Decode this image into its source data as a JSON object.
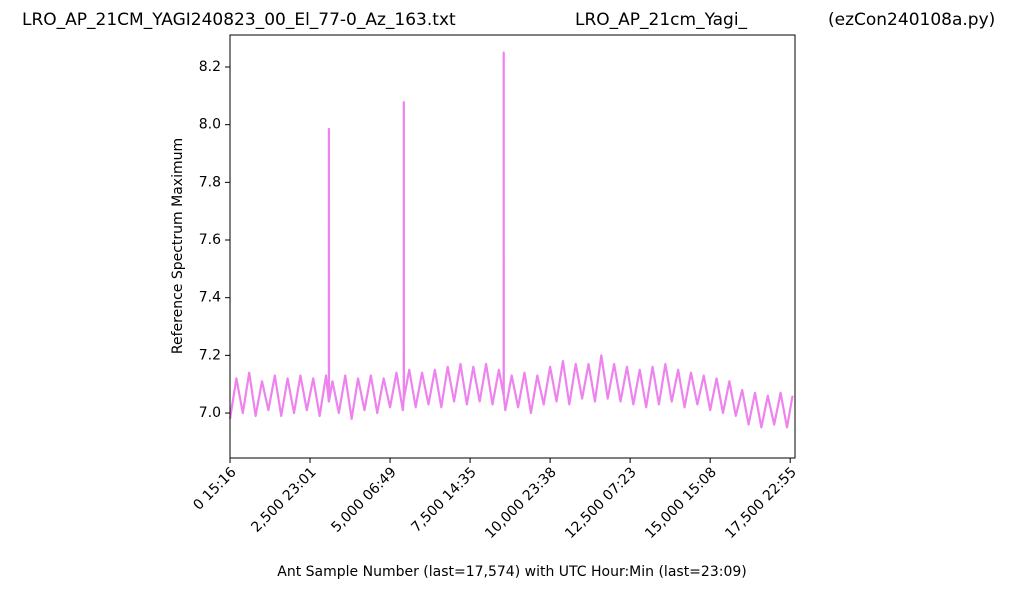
{
  "chart_data": {
    "type": "line",
    "title_left": "LRO_AP_21CM_YAGI240823_00_El_77-0_Az_163.txt",
    "title": "LRO_AP_21cm_Yagi_",
    "title_right": "(ezCon240108a.py)",
    "x_label": "Ant Sample Number (last=17,574) with UTC Hour:Min (last=23:09)",
    "y_label": "Reference Spectrum Maximum",
    "x": [
      0,
      200,
      400,
      600,
      800,
      1000,
      1200,
      1400,
      1600,
      1800,
      2000,
      2200,
      2400,
      2600,
      2800,
      3000,
      3088,
      3090,
      3092,
      3200,
      3400,
      3600,
      3800,
      4000,
      4200,
      4400,
      4600,
      4800,
      5000,
      5200,
      5400,
      5428,
      5430,
      5432,
      5600,
      5800,
      6000,
      6200,
      6400,
      6600,
      6800,
      7000,
      7200,
      7400,
      7600,
      7800,
      8000,
      8200,
      8400,
      8548,
      8550,
      8552,
      8600,
      8800,
      9000,
      9200,
      9400,
      9600,
      9800,
      10000,
      10200,
      10400,
      10600,
      10800,
      11000,
      11200,
      11400,
      11600,
      11800,
      12000,
      12200,
      12400,
      12600,
      12800,
      13000,
      13200,
      13400,
      13600,
      13800,
      14000,
      14200,
      14400,
      14600,
      14800,
      15000,
      15200,
      15400,
      15600,
      15800,
      16000,
      16200,
      16400,
      16600,
      16800,
      17000,
      17200,
      17400,
      17574
    ],
    "series": [
      {
        "color": "#ee82ee",
        "values": [
          6.98,
          7.12,
          7.0,
          7.14,
          6.99,
          7.11,
          7.01,
          7.13,
          6.99,
          7.12,
          7.0,
          7.13,
          7.01,
          7.12,
          6.99,
          7.13,
          7.04,
          7.985,
          7.04,
          7.11,
          7.0,
          7.13,
          6.98,
          7.12,
          7.01,
          7.13,
          7.0,
          7.12,
          7.02,
          7.14,
          7.01,
          7.05,
          8.078,
          7.05,
          7.15,
          7.02,
          7.14,
          7.03,
          7.15,
          7.02,
          7.16,
          7.04,
          7.17,
          7.03,
          7.16,
          7.04,
          7.17,
          7.03,
          7.15,
          7.06,
          8.25,
          7.06,
          7.01,
          7.13,
          7.02,
          7.14,
          7.0,
          7.13,
          7.03,
          7.16,
          7.04,
          7.18,
          7.03,
          7.17,
          7.05,
          7.17,
          7.04,
          7.2,
          7.05,
          7.17,
          7.04,
          7.16,
          7.03,
          7.15,
          7.02,
          7.16,
          7.03,
          7.17,
          7.04,
          7.15,
          7.02,
          7.14,
          7.03,
          7.13,
          7.01,
          7.12,
          7.0,
          7.11,
          6.99,
          7.08,
          6.96,
          7.07,
          6.95,
          7.06,
          6.96,
          7.07,
          6.95,
          7.06
        ]
      }
    ],
    "xlim": [
      0,
      17650
    ],
    "ylim": [
      6.844,
      8.311
    ],
    "xticks": [
      {
        "value": 0,
        "label": "0  15:16"
      },
      {
        "value": 2500,
        "label": "2,500  23:01"
      },
      {
        "value": 5000,
        "label": "5,000  06:49"
      },
      {
        "value": 7500,
        "label": "7,500  14:35"
      },
      {
        "value": 10000,
        "label": "10,000  23:38"
      },
      {
        "value": 12500,
        "label": "12,500  07:23"
      },
      {
        "value": 15000,
        "label": "15,000  15:08"
      },
      {
        "value": 17500,
        "label": "17,500  22:55"
      }
    ],
    "yticks": [
      {
        "value": 7,
        "label": "7.0"
      },
      7.2,
      7.4,
      7.6,
      7.8,
      {
        "value": 8,
        "label": "8.0"
      },
      8.2
    ]
  }
}
